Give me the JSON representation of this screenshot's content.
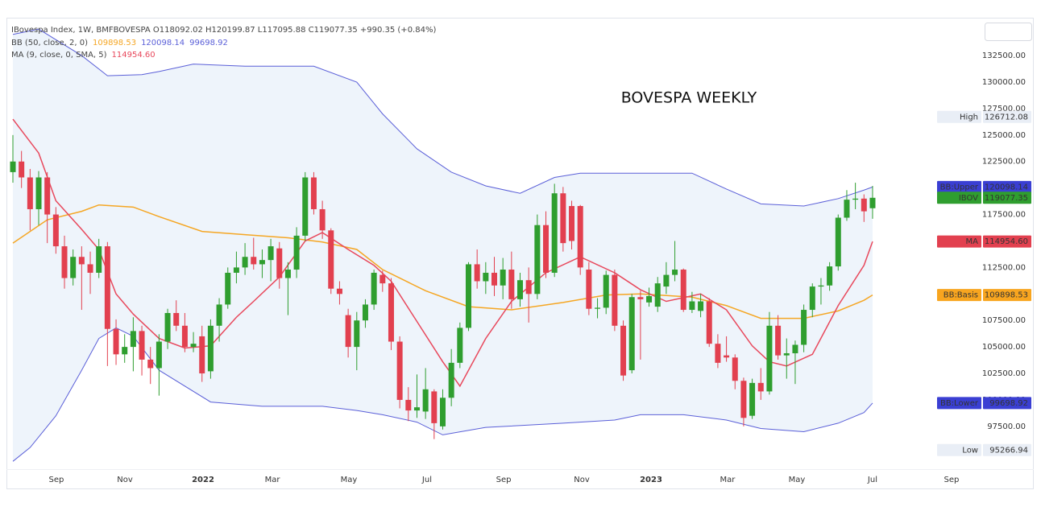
{
  "chart_data": {
    "type": "candlestick",
    "title": "BOVESPA WEEKLY",
    "legend": {
      "ohlc": "IBovespa Index, 1W, BMFBOVESPA  O118092.02 H120199.87 L117095.88 C119077.35 +990.35 (+0.84%)",
      "bb": "BB (50, close, 2, 0)",
      "bb_values": [
        "109898.53",
        "120098.14",
        "99698.92"
      ],
      "ma": "MA (9, close, 0, SMA, 5)",
      "ma_value": "114954.60"
    },
    "up_color": "#2f9e2f",
    "down_color": "#e2404f",
    "x": [
      0,
      1,
      2,
      3,
      4,
      5,
      6,
      7,
      8,
      9,
      10,
      11,
      12,
      13,
      14,
      15,
      16,
      17,
      18,
      19,
      20,
      21,
      22,
      23,
      24,
      25,
      26,
      27,
      28,
      29,
      30,
      31,
      32,
      33,
      34,
      35,
      36,
      37,
      38,
      39,
      40,
      41,
      42,
      43,
      44,
      45,
      46,
      47,
      48,
      49,
      50,
      51,
      52,
      53,
      54,
      55,
      56,
      57,
      58,
      59,
      60,
      61,
      62,
      63,
      64,
      65,
      66,
      67,
      68,
      69,
      70,
      71,
      72,
      73,
      74,
      75,
      76,
      77,
      78,
      79,
      80,
      81,
      82,
      83,
      84,
      85,
      86,
      87,
      88,
      89,
      90,
      91,
      92,
      93,
      94,
      95,
      96,
      97,
      98,
      99,
      100
    ],
    "open": [
      121500,
      122500,
      121000,
      118000,
      121000,
      117500,
      114500,
      111500,
      113500,
      112800,
      112000,
      114500,
      106700,
      104300,
      105000,
      106500,
      103800,
      103000,
      105500,
      108200,
      107000,
      105000,
      106000,
      102700,
      107000,
      109000,
      112000,
      112500,
      113500,
      112800,
      113200,
      114300,
      111500,
      112300,
      115500,
      121000,
      118000,
      116000,
      110500,
      108000,
      105000,
      107500,
      109000,
      111800,
      111000,
      105500,
      100000,
      99000,
      98900,
      100800,
      97500,
      100200,
      103500,
      106800,
      112800,
      111200,
      112000,
      110800,
      112300,
      109500,
      111300,
      110000,
      116500,
      112000,
      119500,
      118300,
      118300,
      112300,
      108600,
      108700,
      111800,
      107000,
      102800,
      109700,
      109200,
      108800,
      110700,
      111800,
      112300,
      108500,
      108400,
      109300,
      105300,
      104200,
      104000,
      101800,
      98500,
      101600,
      100800,
      107000,
      104200,
      104400,
      105200,
      108500,
      110700,
      110800,
      112600,
      117200,
      118900,
      119000,
      118092.02
    ],
    "high": [
      125000,
      123500,
      121800,
      121600,
      121500,
      118200,
      115500,
      114200,
      114500,
      114000,
      115200,
      114900,
      107600,
      106200,
      107800,
      107000,
      105000,
      106200,
      108600,
      109400,
      108200,
      106400,
      107000,
      107600,
      109600,
      112500,
      114000,
      114800,
      115300,
      114200,
      115200,
      114900,
      113000,
      116300,
      121500,
      121500,
      118800,
      116200,
      111200,
      108600,
      108300,
      109500,
      112300,
      112200,
      111500,
      106000,
      101200,
      102400,
      103000,
      101000,
      101000,
      104800,
      107300,
      113000,
      114200,
      113000,
      113500,
      113400,
      114000,
      112000,
      112500,
      117500,
      117800,
      120400,
      120100,
      118800,
      118400,
      113000,
      109600,
      112200,
      112300,
      107500,
      110000,
      110300,
      110600,
      111600,
      113000,
      115000,
      112400,
      110200,
      110000,
      109600,
      106200,
      106000,
      104300,
      102100,
      102000,
      103000,
      108300,
      108000,
      105800,
      105600,
      109000,
      111000,
      111500,
      113000,
      117500,
      119800,
      120500,
      119400,
      120199.87
    ],
    "low": [
      120500,
      120000,
      116000,
      116500,
      114800,
      113800,
      110500,
      110800,
      108500,
      110000,
      111500,
      103200,
      103300,
      103500,
      102700,
      102300,
      101500,
      100400,
      104800,
      106500,
      104500,
      104500,
      101700,
      102000,
      105500,
      108600,
      111000,
      111800,
      112300,
      111500,
      111200,
      110500,
      108000,
      111500,
      115000,
      117500,
      115200,
      110000,
      109000,
      104000,
      102800,
      106800,
      108500,
      110200,
      104700,
      99200,
      98000,
      98300,
      98200,
      96300,
      97200,
      99400,
      103000,
      106500,
      110500,
      110000,
      109800,
      109500,
      108600,
      108800,
      107300,
      109500,
      111500,
      111600,
      114000,
      114200,
      111800,
      108000,
      107700,
      108100,
      106500,
      101800,
      102500,
      103800,
      108800,
      108300,
      110000,
      111200,
      108300,
      108200,
      107800,
      105000,
      103000,
      103600,
      101000,
      97500,
      98200,
      100000,
      100500,
      103800,
      102000,
      101500,
      104500,
      107800,
      109000,
      110300,
      112200,
      116900,
      118000,
      116800,
      117095.88
    ],
    "close": [
      122500,
      121000,
      118000,
      121000,
      117500,
      114500,
      111500,
      113500,
      112800,
      112000,
      114500,
      106700,
      104300,
      105000,
      106500,
      103800,
      103000,
      105500,
      108200,
      107000,
      105000,
      105300,
      102500,
      107000,
      109000,
      112000,
      112500,
      113500,
      112800,
      113200,
      114500,
      111500,
      112300,
      115500,
      121000,
      118000,
      116000,
      110500,
      110000,
      105000,
      107500,
      109000,
      112000,
      111000,
      105500,
      100000,
      99000,
      99300,
      101000,
      97800,
      100200,
      103500,
      106800,
      112800,
      111200,
      112000,
      110800,
      112300,
      109500,
      111300,
      110000,
      116500,
      112000,
      119500,
      114800,
      115000,
      112500,
      108600,
      108700,
      111800,
      107000,
      102300,
      109700,
      109500,
      109800,
      111000,
      111800,
      112300,
      108500,
      109300,
      109300,
      105300,
      103500,
      104000,
      101800,
      98300,
      101600,
      100800,
      107000,
      104200,
      104400,
      105200,
      108500,
      110700,
      110800,
      112600,
      117200,
      118900,
      119000,
      117800,
      119077.35
    ],
    "overlays": [
      {
        "color": "#5a5fd8",
        "x": [
          0,
          3,
          8,
          11,
          15,
          17,
          21,
          27,
          35,
          40,
          43,
          47,
          51,
          55,
          59,
          63,
          66,
          72,
          79,
          83,
          87,
          92,
          96,
          99,
          100
        ],
        "values": [
          134500,
          135000,
          132500,
          130600,
          130700,
          131000,
          131700,
          131500,
          131500,
          130000,
          127000,
          123700,
          121500,
          120200,
          119500,
          121000,
          121400,
          121400,
          121400,
          119900,
          118500,
          118300,
          119000,
          119800,
          120098.14
        ]
      },
      {
        "color": "#f5a623",
        "x": [
          0,
          4,
          8,
          10,
          14,
          17,
          22,
          27,
          32,
          36,
          40,
          43,
          48,
          53,
          58,
          64,
          69,
          73,
          79,
          83,
          87,
          92,
          96,
          99,
          100
        ],
        "values": [
          114800,
          117000,
          117800,
          118400,
          118200,
          117300,
          115900,
          115600,
          115300,
          114900,
          114200,
          112300,
          110300,
          108800,
          108500,
          109200,
          109900,
          110000,
          109700,
          108900,
          107700,
          107700,
          108400,
          109400,
          109898.53
        ]
      },
      {
        "color": "#5a5fd8",
        "x": [
          0,
          2,
          5,
          8,
          10,
          12,
          14,
          17,
          23,
          29,
          36,
          40,
          43,
          47,
          50,
          55,
          64,
          70,
          73,
          78,
          83,
          87,
          92,
          96,
          99,
          100
        ],
        "values": [
          94200,
          95500,
          98500,
          102800,
          105800,
          106800,
          106000,
          102800,
          99800,
          99400,
          99400,
          99000,
          98600,
          97900,
          96700,
          97400,
          97800,
          98100,
          98600,
          98600,
          98100,
          97300,
          97000,
          97800,
          98800,
          99698.92
        ]
      },
      {
        "color": "#e8485c",
        "x": [
          0,
          3,
          5,
          8,
          10,
          12,
          14,
          17,
          20,
          23,
          26,
          28,
          31,
          34,
          36,
          39,
          42,
          44,
          47,
          50,
          52,
          55,
          58,
          62,
          66,
          70,
          73,
          76,
          80,
          83,
          86,
          88,
          90,
          93,
          96,
          99,
          100
        ],
        "values": [
          126500,
          123300,
          118800,
          116100,
          114200,
          110000,
          108100,
          105800,
          104900,
          105100,
          107800,
          109300,
          111600,
          115000,
          115800,
          114200,
          112700,
          111200,
          107400,
          103600,
          101300,
          105800,
          109300,
          112000,
          113500,
          112000,
          110400,
          109300,
          110000,
          108500,
          105100,
          103600,
          103200,
          104300,
          108900,
          112700,
          114954.6
        ]
      }
    ],
    "price_labels": [
      {
        "name": "High",
        "value": 126712.08,
        "label": "126712.08",
        "color": "#e9eef6"
      },
      {
        "name": "BB:Upper",
        "value": 120098.14,
        "label": "120098.14",
        "color": "#3a3fd3"
      },
      {
        "name": "IBOV",
        "value": 119077.35,
        "label": "119077.35",
        "color": "#2f9e2f"
      },
      {
        "name": "MA",
        "value": 114954.6,
        "label": "114954.60",
        "color": "#e2404f"
      },
      {
        "name": "BB:Basis",
        "value": 109898.53,
        "label": "109898.53",
        "color": "#f8a51f"
      },
      {
        "name": "BB:Lower",
        "value": 99698.92,
        "label": "99698.92",
        "color": "#3a3fd3"
      },
      {
        "name": "Low",
        "value": 95266.94,
        "label": "95266.94",
        "color": "#e9eef6"
      }
    ],
    "xlim": [
      -0.75,
      110.5
    ],
    "xticks": [
      {
        "value": 5.06,
        "label": "Sep"
      },
      {
        "value": 13.03,
        "label": "Nov"
      },
      {
        "value": 22.12,
        "label": "2022"
      },
      {
        "value": 30.18,
        "label": "Mar"
      },
      {
        "value": 39.08,
        "label": "May"
      },
      {
        "value": 48.17,
        "label": "Jul"
      },
      {
        "value": 57.08,
        "label": "Sep"
      },
      {
        "value": 66.17,
        "label": "Nov"
      },
      {
        "value": 74.23,
        "label": "2023"
      },
      {
        "value": 83.13,
        "label": "Mar"
      },
      {
        "value": 91.19,
        "label": "May"
      },
      {
        "value": 100.0,
        "label": "Jul"
      },
      {
        "value": 109.18,
        "label": "Sep"
      }
    ],
    "ylim": [
      93463,
      136077
    ],
    "yticks": [
      {
        "value": 97500,
        "label": "97500.00"
      },
      {
        "value": 100000,
        "label": "100000.00"
      },
      {
        "value": 102500,
        "label": "102500.00"
      },
      {
        "value": 105000,
        "label": "105000.00"
      },
      {
        "value": 107500,
        "label": "107500.00"
      },
      {
        "value": 110000,
        "label": "110000.00"
      },
      {
        "value": 112500,
        "label": "112500.00"
      },
      {
        "value": 115000,
        "label": "115000.00"
      },
      {
        "value": 117500,
        "label": "117500.00"
      },
      {
        "value": 120000,
        "label": "120000.00"
      },
      {
        "value": 122500,
        "label": "122500.00"
      },
      {
        "value": 125000,
        "label": "125000.00"
      },
      {
        "value": 127500,
        "label": "127500.00"
      },
      {
        "value": 130000,
        "label": "130000.00"
      },
      {
        "value": 132500,
        "label": "132500.00"
      }
    ],
    "grid": false
  }
}
